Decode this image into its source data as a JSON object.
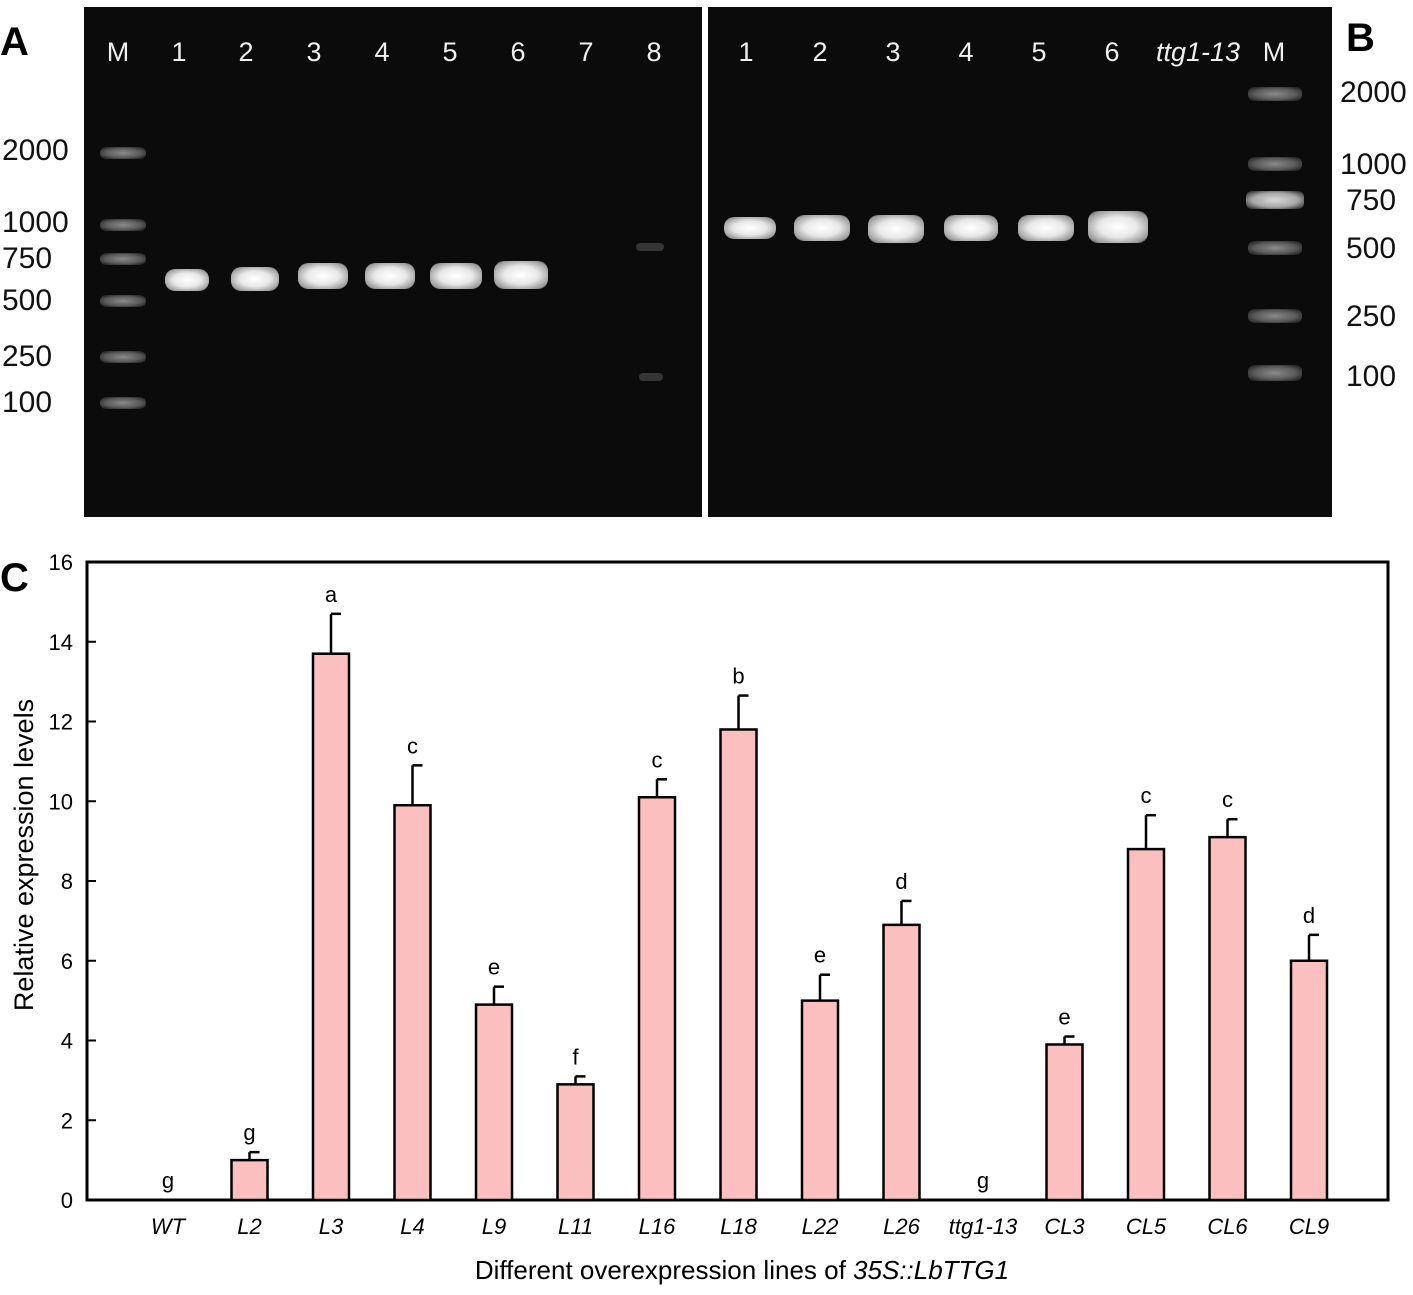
{
  "panels": {
    "a": "A",
    "b": "B",
    "c": "C"
  },
  "gel_a": {
    "lanes": [
      "M",
      "1",
      "2",
      "3",
      "4",
      "5",
      "6",
      "7",
      "8"
    ],
    "size_markers": [
      "2000",
      "1000",
      "750",
      "500",
      "250",
      "100"
    ]
  },
  "gel_b": {
    "lanes": [
      "1",
      "2",
      "3",
      "4",
      "5",
      "6",
      "ttg1-13",
      "M"
    ],
    "size_markers": [
      "2000",
      "1000",
      "750",
      "500",
      "250",
      "100"
    ]
  },
  "chart_data": {
    "type": "bar",
    "categories": [
      "WT",
      "L2",
      "L3",
      "L4",
      "L9",
      "L11",
      "L16",
      "L18",
      "L22",
      "L26",
      "ttg1-13",
      "CL3",
      "CL5",
      "CL6",
      "CL9"
    ],
    "values": [
      0,
      1.0,
      13.7,
      9.9,
      4.9,
      2.9,
      10.1,
      11.8,
      5.0,
      6.9,
      0,
      3.9,
      8.8,
      9.1,
      6.0
    ],
    "errors": [
      0,
      0.2,
      1.0,
      1.0,
      0.45,
      0.2,
      0.45,
      0.85,
      0.65,
      0.6,
      0,
      0.2,
      0.85,
      0.45,
      0.65
    ],
    "significance": [
      "g",
      "g",
      "a",
      "c",
      "e",
      "f",
      "c",
      "b",
      "e",
      "d",
      "g",
      "e",
      "c",
      "c",
      "d"
    ],
    "title": "",
    "xlabel_prefix": "Different overexpression lines of ",
    "xlabel_italic": "35S::LbTTG1",
    "ylabel": "Relative  expression levels",
    "ylim": [
      0,
      16
    ],
    "yticks": [
      0,
      2,
      4,
      6,
      8,
      10,
      12,
      14,
      16
    ],
    "grid": false,
    "bar_color": "#fcbfc0",
    "bar_edge_color": "#000000"
  }
}
